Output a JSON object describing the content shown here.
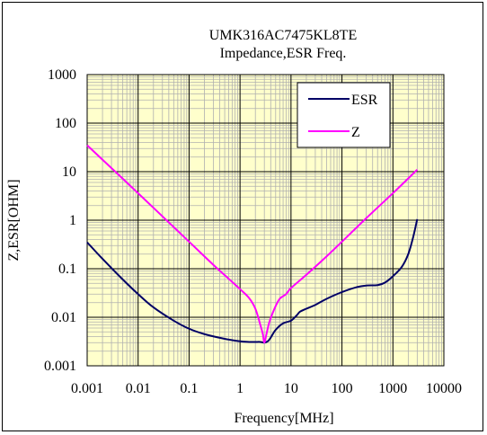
{
  "chart_data": {
    "type": "line",
    "title": "UMK316AC7475KL8TE",
    "subtitle": "Impedance,ESR Freq.",
    "xlabel": "Frequency[MHz]",
    "ylabel": "Z,ESR[OHM]",
    "xscale": "log",
    "yscale": "log",
    "xlim": [
      0.001,
      10000
    ],
    "ylim": [
      0.001,
      1000
    ],
    "x_ticks": [
      "0.001",
      "0.01",
      "0.1",
      "1",
      "10",
      "100",
      "1000",
      "10000"
    ],
    "y_ticks": [
      "0.001",
      "0.01",
      "0.1",
      "1",
      "10",
      "100",
      "1000"
    ],
    "grid": true,
    "legend_position": "top-right",
    "background_color": "#ffffcc",
    "grid_color": "#b0b0b0",
    "series": [
      {
        "name": "ESR",
        "color": "#000066",
        "x": [
          0.001,
          0.002,
          0.005,
          0.01,
          0.02,
          0.05,
          0.1,
          0.2,
          0.5,
          1,
          1.5,
          2,
          2.5,
          3,
          3.5,
          4,
          5,
          7,
          10,
          13,
          15,
          20,
          30,
          50,
          100,
          200,
          300,
          500,
          700,
          1000,
          1500,
          2000,
          2500,
          3000
        ],
        "values": [
          0.35,
          0.16,
          0.06,
          0.03,
          0.016,
          0.0085,
          0.0058,
          0.0045,
          0.0036,
          0.0032,
          0.0031,
          0.0031,
          0.0031,
          0.003,
          0.0032,
          0.0038,
          0.0055,
          0.0075,
          0.0085,
          0.011,
          0.013,
          0.015,
          0.018,
          0.024,
          0.033,
          0.042,
          0.045,
          0.046,
          0.052,
          0.07,
          0.11,
          0.2,
          0.45,
          1.05
        ]
      },
      {
        "name": "Z",
        "color": "#ff00ff",
        "x": [
          0.001,
          0.01,
          0.1,
          0.3,
          0.6,
          1,
          1.5,
          2,
          2.5,
          2.8,
          3,
          3.3,
          3.7,
          4.2,
          5,
          6,
          8,
          10,
          20,
          50,
          100,
          300,
          1000,
          3000
        ],
        "values": [
          35,
          3.6,
          0.36,
          0.12,
          0.062,
          0.038,
          0.025,
          0.015,
          0.007,
          0.0045,
          0.003,
          0.0045,
          0.0075,
          0.011,
          0.017,
          0.024,
          0.03,
          0.04,
          0.075,
          0.18,
          0.36,
          1.1,
          3.6,
          11
        ]
      }
    ]
  }
}
